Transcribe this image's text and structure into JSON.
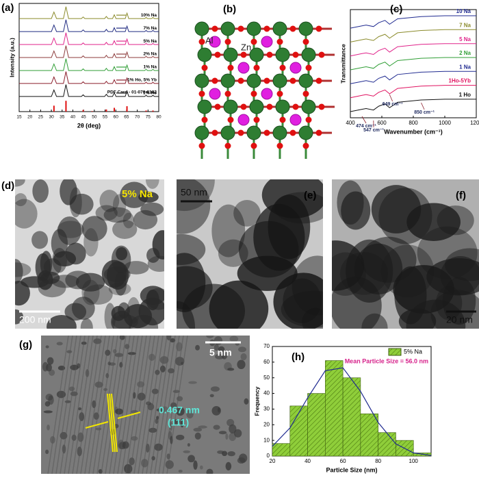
{
  "panels": [
    "(a)",
    "(b)",
    "(c)",
    "(d)",
    "(e)",
    "(f)",
    "(g)",
    "(h)"
  ],
  "structure": {
    "labels": [
      "Al",
      "Zn"
    ]
  },
  "micrographs": [
    {
      "label": "5% Na",
      "scale_bar": "200 nm"
    },
    {
      "scale_bar": "50 nm"
    },
    {
      "scale_bar": "20 nm"
    },
    {
      "scale_bar": "5 nm",
      "d_spacing": "0.467 nm",
      "plane": "(111)"
    }
  ],
  "chart_data": [
    {
      "type": "line",
      "ylabel": "Intensity (a.u.)",
      "xlabel": "2θ (deg)",
      "xlim": [
        15,
        80
      ],
      "xticks": [
        15,
        20,
        25,
        30,
        35,
        40,
        45,
        50,
        55,
        60,
        65,
        70,
        75,
        80
      ],
      "ylim": [
        0,
        100
      ],
      "legend": "inline-right",
      "x": [
        15,
        30,
        31.2,
        32.4,
        35.6,
        36.8,
        38,
        44,
        44.8,
        45.6,
        54.8,
        55.6,
        56.4,
        58.5,
        59.3,
        60.1,
        64.4,
        65.2,
        66,
        73.4,
        74.1,
        74.8,
        76.6,
        77.3,
        78,
        80
      ],
      "series": [
        {
          "name": "1% Ho",
          "color": "#111111",
          "values": [
            14,
            14,
            20,
            14,
            14,
            25,
            14,
            14,
            15.5,
            14,
            14,
            16,
            14,
            14,
            17.5,
            14,
            14,
            19,
            14,
            14,
            15,
            14,
            14,
            15,
            14,
            14
          ]
        },
        {
          "name": "1% Ho, 5% Yb",
          "color": "#8b1c2a",
          "values": [
            26,
            26,
            32,
            26,
            26,
            37,
            26,
            26,
            27.5,
            26,
            26,
            28,
            26,
            26,
            29.5,
            26,
            26,
            31,
            26,
            26,
            27,
            26,
            26,
            27,
            26,
            26
          ]
        },
        {
          "name": "1% Na",
          "color": "#2f9e35",
          "values": [
            38,
            38,
            44,
            38,
            38,
            49,
            38,
            38,
            39.5,
            38,
            38,
            40,
            38,
            38,
            41.5,
            38,
            38,
            43,
            38,
            38,
            39,
            38,
            38,
            39,
            38,
            38
          ]
        },
        {
          "name": "2% Na",
          "color": "#8c3b3b",
          "values": [
            50,
            50,
            56,
            50,
            50,
            61,
            50,
            50,
            51.5,
            50,
            50,
            52,
            50,
            50,
            53.5,
            50,
            50,
            55,
            50,
            50,
            51,
            50,
            50,
            51,
            50,
            50
          ]
        },
        {
          "name": "5% Na",
          "color": "#e0228a",
          "values": [
            62,
            62,
            68,
            62,
            62,
            73,
            62,
            62,
            63.5,
            62,
            62,
            64,
            62,
            62,
            65.5,
            62,
            62,
            67,
            62,
            62,
            63,
            62,
            62,
            63,
            62,
            62
          ]
        },
        {
          "name": "7% Na",
          "color": "#1f2a80",
          "values": [
            74,
            74,
            80,
            74,
            74,
            85,
            74,
            74,
            75.5,
            74,
            74,
            76,
            74,
            74,
            77.5,
            74,
            74,
            79,
            74,
            74,
            75,
            74,
            74,
            75,
            74,
            74
          ]
        },
        {
          "name": "10% Na",
          "color": "#8a8a2a",
          "values": [
            86,
            86,
            92,
            86,
            86,
            97,
            86,
            86,
            87.5,
            86,
            86,
            88,
            86,
            86,
            89.5,
            86,
            86,
            91,
            86,
            86,
            87,
            86,
            86,
            87,
            86,
            86
          ]
        }
      ],
      "reference": {
        "name": "PDF Card - 01-070-8182",
        "color": "#e01010",
        "x": [
          31.2,
          36.8,
          44.8,
          49.0,
          55.6,
          59.3,
          65.2,
          74.1,
          77.3
        ],
        "values": [
          5.5,
          10,
          1.5,
          0.5,
          2,
          3.5,
          5,
          1,
          1
        ]
      }
    },
    {
      "type": "line",
      "ylabel": "Transmittance",
      "xlabel": "Wavenumber (cm⁻¹)",
      "xlim": [
        400,
        1200
      ],
      "xticks": [
        400,
        600,
        800,
        1000,
        1200
      ],
      "ylim": [
        -4,
        66
      ],
      "legend": "inline-right",
      "x": [
        400,
        474,
        500,
        547,
        580,
        620,
        649,
        700,
        850,
        1000,
        1200
      ],
      "series": [
        {
          "name": "1 Ho",
          "color": "#111111",
          "values": [
            0,
            1.5,
            2,
            1,
            3.5,
            5,
            2.5,
            6,
            7.5,
            8,
            8
          ]
        },
        {
          "name": "1Ho-5Yb",
          "color": "#e0115f",
          "values": [
            9,
            10.5,
            11,
            10,
            12.5,
            14,
            11.5,
            15,
            16.5,
            17,
            17
          ]
        },
        {
          "name": "1 Na",
          "color": "#1f2a90",
          "values": [
            18,
            19.5,
            20,
            19,
            21.5,
            23,
            20.5,
            24,
            25.5,
            26,
            26
          ]
        },
        {
          "name": "2 Na",
          "color": "#2f9e35",
          "values": [
            27,
            28.5,
            29,
            28,
            30.5,
            32,
            29.5,
            33,
            34.5,
            35,
            35
          ]
        },
        {
          "name": "5 Na",
          "color": "#e0228a",
          "values": [
            36,
            37.5,
            38,
            37,
            39.5,
            41,
            38.5,
            42,
            43.5,
            44,
            44
          ]
        },
        {
          "name": "7 Na",
          "color": "#8a8a2a",
          "values": [
            45,
            46.5,
            47,
            46,
            48.5,
            50,
            47.5,
            51,
            52.5,
            53,
            53
          ]
        },
        {
          "name": "10 Na",
          "color": "#1f2a90",
          "values": [
            54,
            55.5,
            56,
            55,
            57.5,
            59,
            56.5,
            60,
            61.5,
            62,
            62
          ]
        }
      ],
      "annotations": [
        "474 cm⁻¹",
        "547 cm⁻¹",
        "649 cm⁻¹",
        "850 cm⁻¹"
      ]
    },
    {
      "type": "histogram",
      "ylabel": "Frequency",
      "xlabel": "Particle Size (nm)",
      "xlim": [
        20,
        110
      ],
      "xticks": [
        20,
        40,
        60,
        80,
        100
      ],
      "ylim": [
        0,
        70
      ],
      "yticks": [
        0,
        10,
        20,
        30,
        40,
        50,
        60,
        70
      ],
      "legend": "upper right",
      "name": "5% Na",
      "color": "#8fce3a",
      "bins": [
        20,
        30,
        40,
        50,
        60,
        70,
        80,
        90,
        100,
        110
      ],
      "values": [
        8,
        32,
        40,
        61,
        50,
        27,
        15,
        10,
        2
      ],
      "fit": {
        "color": "#1f2a90",
        "x": [
          20,
          30,
          40,
          50,
          60,
          70,
          80,
          90,
          100,
          110
        ],
        "values": [
          6.2,
          18.0,
          37.2,
          54.5,
          56.4,
          41.3,
          21.4,
          7.8,
          2.0,
          0.4
        ]
      },
      "annotation": "Mean Particle Size = 56.0 nm"
    }
  ]
}
